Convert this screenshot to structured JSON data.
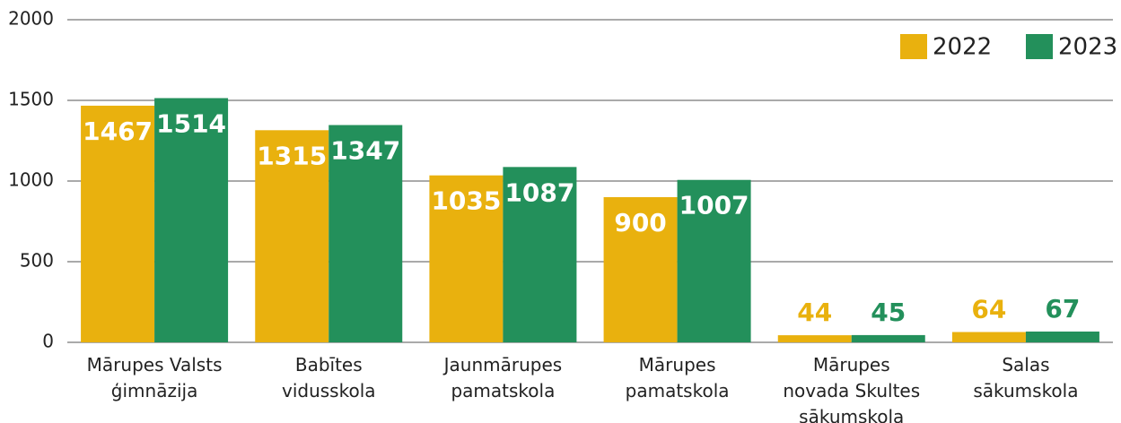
{
  "chart_data": {
    "type": "bar",
    "categories": [
      "Mārupes Valsts\nģimnāzija",
      "Babītes\nvidusskola",
      "Jaunmārupes\npamatskola",
      "Mārupes\npamatskola",
      "Mārupes\nnovada Skultes\nsākumskola",
      "Salas\nsākumskola"
    ],
    "series": [
      {
        "name": "2022",
        "color": "#e9b10e",
        "values": [
          1467,
          1315,
          1035,
          900,
          44,
          64
        ]
      },
      {
        "name": "2023",
        "color": "#23905b",
        "values": [
          1514,
          1347,
          1087,
          1007,
          45,
          67
        ]
      }
    ],
    "ylim": [
      0,
      2000
    ],
    "yticks": [
      0,
      500,
      1000,
      1500,
      2000
    ],
    "grid": true,
    "legend": "top-right"
  }
}
